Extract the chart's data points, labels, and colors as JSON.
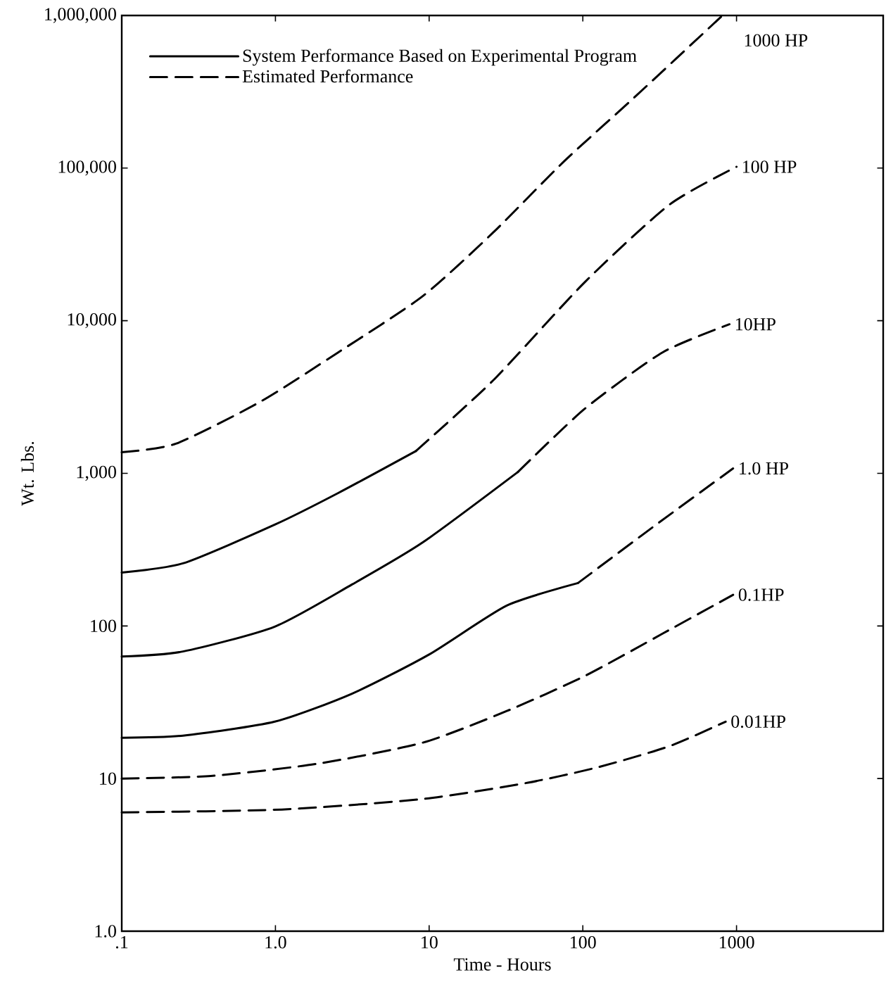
{
  "chart_data": {
    "type": "line",
    "xlabel": "Time - Hours",
    "ylabel": "Wt. Lbs.",
    "log": "xy",
    "legend": "top left",
    "xlim": [
      0.1,
      9000
    ],
    "ylim": [
      1,
      1000000
    ],
    "xticks": [
      {
        "value": 0.1,
        "label": ".1"
      },
      {
        "value": 1,
        "label": "1.0"
      },
      10,
      100,
      1000
    ],
    "yticks": [
      {
        "value": 1,
        "label": "1.0"
      },
      10,
      100,
      {
        "value": 1000,
        "label": "1,000"
      },
      {
        "value": 10000,
        "label": "10,000"
      },
      {
        "value": 100000,
        "label": "100,000"
      },
      {
        "value": 1000000,
        "label": "1,000,000"
      }
    ],
    "series": [
      {
        "name": "System Performance Based on Experimental Program",
        "color": "#000000",
        "line_style": "solid",
        "x": [
          0.1,
          0.25,
          0.99,
          2.56,
          8.2
        ],
        "values": [
          224,
          257,
          461,
          743,
          1400
        ]
      },
      {
        "name": "Estimated Performance",
        "color": "#000000",
        "line_style": "dashed",
        "x": [
          0.1,
          0.225,
          0.8,
          2.56,
          9.1,
          26,
          75,
          216,
          810
        ],
        "values": [
          1374,
          1563,
          2950,
          6200,
          14500,
          37700,
          110000,
          290000,
          1000000
        ]
      },
      {
        "color": "#000000",
        "line_style": "dashed",
        "x": [
          8.2,
          26,
          103,
          366,
          1000
        ],
        "values": [
          1400,
          4050,
          17900,
          57600,
          102000
        ]
      },
      {
        "color": "#000000",
        "line_style": "solid",
        "x": [
          0.1,
          0.25,
          0.99,
          3.15,
          9.1,
          37.8
        ],
        "values": [
          63,
          68,
          99,
          187,
          353,
          1020
        ]
      },
      {
        "color": "#000000",
        "line_style": "dashed",
        "x": [
          37.8,
          103,
          330,
          900
        ],
        "values": [
          1020,
          2650,
          6200,
          9480
        ]
      },
      {
        "color": "#000000",
        "line_style": "solid",
        "x": [
          0.1,
          0.25,
          0.99,
          3.15,
          10,
          32,
          93
        ],
        "values": [
          18.5,
          19.1,
          23.6,
          36,
          65,
          136,
          191
        ]
      },
      {
        "color": "#000000",
        "line_style": "dashed",
        "x": [
          93,
          300,
          950
        ],
        "values": [
          191,
          461,
          1077
        ]
      },
      {
        "color": "#000000",
        "line_style": "dashed",
        "x": [
          0.1,
          0.38,
          1.87,
          9.1,
          32,
          103,
          330,
          950
        ],
        "values": [
          10,
          10.4,
          12.5,
          17.2,
          27.7,
          47,
          89,
          160
        ]
      },
      {
        "color": "#000000",
        "line_style": "dashed",
        "x": [
          0.1,
          1.1,
          9.1,
          44,
          127,
          366,
          850
        ],
        "values": [
          6.0,
          6.27,
          7.35,
          9.4,
          11.9,
          16.3,
          23.6
        ]
      }
    ],
    "annotations": [
      "1000 HP",
      {
        "text": "100 HP",
        "x": 1000,
        "y": 102000
      },
      {
        "text": "10HP",
        "x": 900,
        "y": 9480
      },
      {
        "text": "1.0 HP",
        "x": 950,
        "y": 1077
      },
      {
        "text": "0.1HP",
        "x": 950,
        "y": 160
      },
      {
        "text": "0.01HP",
        "x": 850,
        "y": 23.6
      }
    ]
  }
}
